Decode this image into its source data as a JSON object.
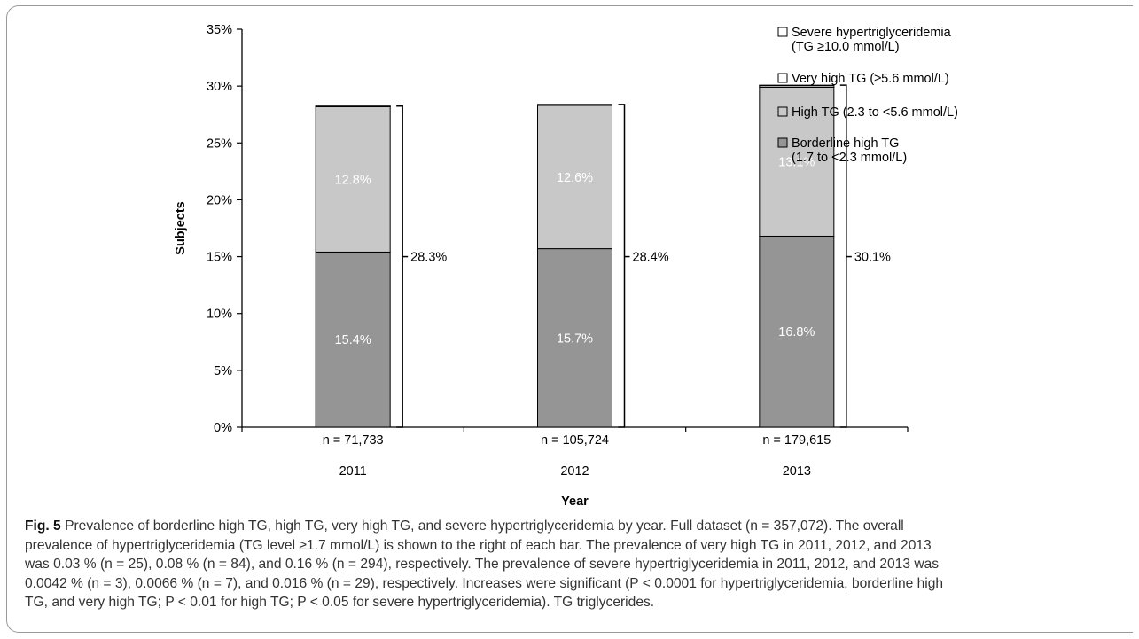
{
  "chart_data": {
    "type": "bar",
    "stacked": true,
    "categories": [
      "2011",
      "2012",
      "2013"
    ],
    "sample_sizes": [
      "n = 71,733",
      "n = 105,724",
      "n = 179,615"
    ],
    "xlabel": "Year",
    "ylabel": "Subjects",
    "ylim": [
      0,
      35
    ],
    "yticks": [
      "0%",
      "5%",
      "10%",
      "15%",
      "20%",
      "25%",
      "30%",
      "35%"
    ],
    "grid": false,
    "legend_position": "top-right",
    "series": [
      {
        "name": "Borderline high TG",
        "name_line2": "(1.7 to <2.3 mmol/L)",
        "values": [
          15.4,
          15.7,
          16.8
        ],
        "labels": [
          "15.4%",
          "15.7%",
          "16.8%"
        ],
        "color": "#959595"
      },
      {
        "name": "High TG (2.3 to <5.6 mmol/L)",
        "name_line2": "",
        "values": [
          12.8,
          12.6,
          13.1
        ],
        "labels": [
          "12.8%",
          "12.6%",
          "13.1%"
        ],
        "color": "#c8c8c8"
      },
      {
        "name": "Very high TG (≥5.6 mmol/L)",
        "name_line2": "",
        "values": [
          0.03,
          0.08,
          0.16
        ],
        "labels": [
          "",
          "",
          ""
        ],
        "color": "#ffffff"
      },
      {
        "name": "Severe hypertriglyceridemia",
        "name_line2": "(TG ≥10.0 mmol/L)",
        "values": [
          0.0042,
          0.0066,
          0.016
        ],
        "labels": [
          "",
          "",
          ""
        ],
        "color": "#ffffff"
      }
    ],
    "totals": [
      28.3,
      28.4,
      30.1
    ],
    "total_labels": [
      "28.3%",
      "28.4%",
      "30.1%"
    ]
  },
  "caption": {
    "label": "Fig. 5",
    "lines": [
      "Prevalence of borderline high TG, high TG, very high TG, and severe hypertriglyceridemia by year. Full dataset (n = 357,072). The overall",
      "prevalence of hypertriglyceridemia (TG level ≥1.7 mmol/L) is shown to the right of each bar. The prevalence of very high TG in 2011, 2012, and 2013",
      "was 0.03 % (n = 25), 0.08 % (n = 84), and 0.16 % (n = 294), respectively. The prevalence of severe hypertriglyceridemia in 2011, 2012, and 2013 was",
      "0.0042 % (n = 3), 0.0066 % (n = 7), and 0.016 % (n = 29), respectively. Increases were significant (P < 0.0001 for hypertriglyceridemia, borderline high",
      "TG, and very high TG; P < 0.01 for high TG; P < 0.05 for severe hypertriglyceridemia). TG triglycerides."
    ]
  }
}
